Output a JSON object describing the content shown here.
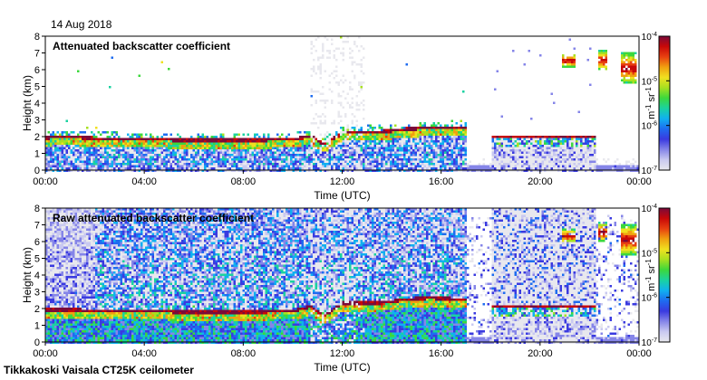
{
  "date_label": "14 Aug 2018",
  "footer_label": "Tikkakoski Vaisala CT25K ceilometer",
  "chart_data": [
    {
      "type": "heatmap",
      "title": "Attenuated backscatter coefficient",
      "xlabel": "Time (UTC)",
      "ylabel": "Height (km)",
      "x_ticks": [
        "00:00",
        "04:00",
        "08:00",
        "12:00",
        "16:00",
        "20:00",
        "00:00"
      ],
      "xlim_hours": [
        0,
        24
      ],
      "y_ticks": [
        0,
        1,
        2,
        3,
        4,
        5,
        6,
        7,
        8
      ],
      "ylim_km": [
        0,
        8
      ],
      "colorbar": {
        "scale": "log",
        "range": [
          1e-07,
          0.0001
        ],
        "ticks": [
          {
            "value": 1e-07,
            "base": "10",
            "exp": "-7"
          },
          {
            "value": 1e-06,
            "base": "10",
            "exp": "-6"
          },
          {
            "value": 1e-05,
            "base": "10",
            "exp": "-5"
          },
          {
            "value": 0.0001,
            "base": "10",
            "exp": "-4"
          }
        ],
        "unit": {
          "m": "m",
          "m_exp": "-1",
          "sr": "sr",
          "sr_exp": "-1"
        }
      },
      "boundary_layer_top_km": [
        {
          "t": 0,
          "h": 2.0
        },
        {
          "t": 1,
          "h": 2.05
        },
        {
          "t": 2,
          "h": 1.95
        },
        {
          "t": 4,
          "h": 1.9
        },
        {
          "t": 6,
          "h": 1.85
        },
        {
          "t": 8,
          "h": 1.85
        },
        {
          "t": 10,
          "h": 1.9
        },
        {
          "t": 10.7,
          "h": 2.1
        },
        {
          "t": 11.2,
          "h": 1.6
        },
        {
          "t": 12,
          "h": 2.3
        },
        {
          "t": 13.5,
          "h": 2.35
        },
        {
          "t": 14.5,
          "h": 2.5
        },
        {
          "t": 15.5,
          "h": 2.6
        },
        {
          "t": 16.9,
          "h": 2.6
        }
      ],
      "late_layer_km": {
        "start_h": 18.0,
        "end_h": 22.2,
        "h": 2.1
      },
      "high_clouds": [
        {
          "t_start": 20.8,
          "t_end": 21.4,
          "h_low": 6.2,
          "h_high": 7.0
        },
        {
          "t_start": 22.3,
          "t_end": 22.7,
          "h_low": 6.0,
          "h_high": 7.2
        },
        {
          "t_start": 23.2,
          "t_end": 23.9,
          "h_low": 5.2,
          "h_high": 7.1
        }
      ]
    },
    {
      "type": "heatmap",
      "title": "Raw attenuated backscatter coefficient",
      "xlabel": "Time (UTC)",
      "ylabel": "Height (km)",
      "x_ticks": [
        "00:00",
        "04:00",
        "08:00",
        "12:00",
        "16:00",
        "20:00",
        "00:00"
      ],
      "xlim_hours": [
        0,
        24
      ],
      "y_ticks": [
        0,
        1,
        2,
        3,
        4,
        5,
        6,
        7,
        8
      ],
      "ylim_km": [
        0,
        8
      ],
      "colorbar": {
        "scale": "log",
        "range": [
          1e-07,
          0.0001
        ],
        "ticks": [
          {
            "value": 1e-07,
            "base": "10",
            "exp": "-7"
          },
          {
            "value": 1e-06,
            "base": "10",
            "exp": "-6"
          },
          {
            "value": 1e-05,
            "base": "10",
            "exp": "-5"
          },
          {
            "value": 0.0001,
            "base": "10",
            "exp": "-4"
          }
        ],
        "unit": {
          "m": "m",
          "m_exp": "-1",
          "sr": "sr",
          "sr_exp": "-1"
        }
      },
      "boundary_layer_top_km": [
        {
          "t": 0,
          "h": 2.0
        },
        {
          "t": 2,
          "h": 1.95
        },
        {
          "t": 4,
          "h": 1.9
        },
        {
          "t": 6,
          "h": 1.85
        },
        {
          "t": 8,
          "h": 1.85
        },
        {
          "t": 10,
          "h": 1.9
        },
        {
          "t": 10.7,
          "h": 2.2
        },
        {
          "t": 11.2,
          "h": 1.6
        },
        {
          "t": 12,
          "h": 2.4
        },
        {
          "t": 13.5,
          "h": 2.4
        },
        {
          "t": 14.5,
          "h": 2.6
        },
        {
          "t": 15.5,
          "h": 2.7
        },
        {
          "t": 16.9,
          "h": 2.6
        }
      ],
      "late_layer_km": {
        "start_h": 18.0,
        "end_h": 22.2,
        "h": 2.2
      },
      "high_clouds": [
        {
          "t_start": 20.8,
          "t_end": 21.4,
          "h_low": 6.0,
          "h_high": 6.8
        },
        {
          "t_start": 22.3,
          "t_end": 22.7,
          "h_low": 6.0,
          "h_high": 7.2
        },
        {
          "t_start": 23.2,
          "t_end": 23.9,
          "h_low": 5.2,
          "h_high": 7.1
        }
      ]
    }
  ]
}
